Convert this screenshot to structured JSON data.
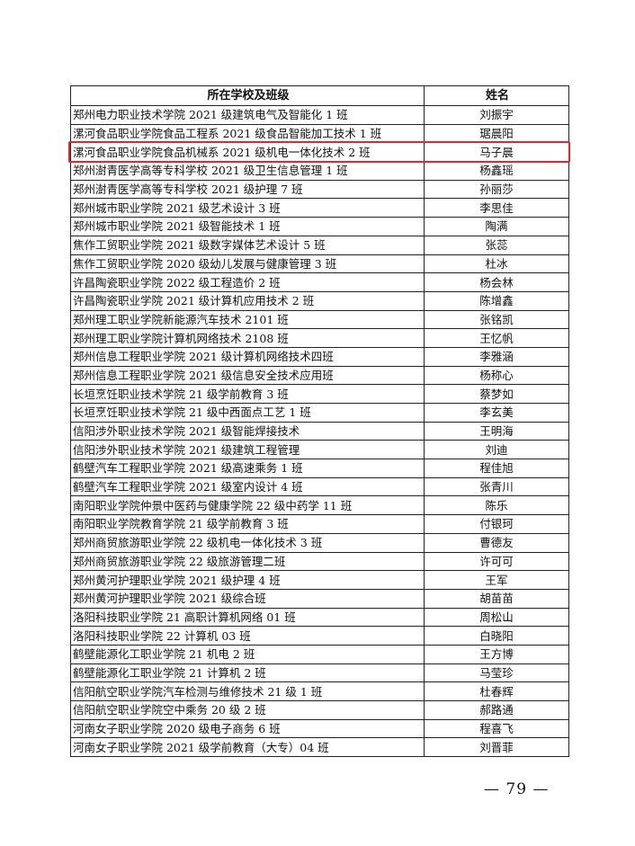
{
  "table": {
    "headers": [
      "所在学校及班级",
      "姓名"
    ],
    "rows": [
      [
        "郑州电力职业技术学院 2021 级建筑电气及智能化 1 班",
        "刘振宇"
      ],
      [
        "漯河食品职业学院食品工程系 2021 级食品智能加工技术 1 班",
        "琚晨阳"
      ],
      [
        "漯河食品职业学院食品机械系 2021 级机电一体化技术 2 班",
        "马子晨"
      ],
      [
        "郑州澍青医学高等专科学校 2021 级卫生信息管理 1 班",
        "杨鑫瑶"
      ],
      [
        "郑州澍青医学高等专科学校 2021 级护理 7 班",
        "孙丽莎"
      ],
      [
        "郑州城市职业学院 2021 级艺术设计 3 班",
        "李思佳"
      ],
      [
        "郑州城市职业学院 2021 级智能技术 1 班",
        "陶满"
      ],
      [
        "焦作工贸职业学院 2021 级数字媒体艺术设计 5 班",
        "张蕊"
      ],
      [
        "焦作工贸职业学院 2020 级幼儿发展与健康管理 3 班",
        "杜冰"
      ],
      [
        "许昌陶瓷职业学院 2022 级工程造价 2 班",
        "杨会林"
      ],
      [
        "许昌陶瓷职业学院 2021 级计算机应用技术 2 班",
        "陈增鑫"
      ],
      [
        "郑州理工职业学院新能源汽车技术 2101 班",
        "张铭凯"
      ],
      [
        "郑州理工职业学院计算机网络技术 2108 班",
        "王忆帆"
      ],
      [
        "郑州信息工程职业学院 2021 级计算机网络技术四班",
        "李雅涵"
      ],
      [
        "郑州信息工程职业学院 2021 级信息安全技术应用班",
        "杨称心"
      ],
      [
        "长垣烹饪职业技术学院 21 级学前教育 3 班",
        "蔡梦如"
      ],
      [
        "长垣烹饪职业技术学院 21 级中西面点工艺 1 班",
        "李玄美"
      ],
      [
        "信阳涉外职业技术学院 2021 级智能焊接技术",
        "王明海"
      ],
      [
        "信阳涉外职业技术学院 2021 级建筑工程管理",
        "刘迪"
      ],
      [
        "鹤壁汽车工程职业学院 2021 级高速乘务 1 班",
        "程佳旭"
      ],
      [
        "鹤壁汽车工程职业学院 2021 级室内设计 4 班",
        "张青川"
      ],
      [
        "南阳职业学院仲景中医药与健康学院 22 级中药学 11 班",
        "陈乐"
      ],
      [
        "南阳职业学院教育学院 21 级学前教育 3 班",
        "付银珂"
      ],
      [
        "郑州商贸旅游职业学院 22 级机电一体化技术 3 班",
        "曹德友"
      ],
      [
        "郑州商贸旅游职业学院 22 级旅游管理二班",
        "许可可"
      ],
      [
        "郑州黄河护理职业学院 2021 级护理 4 班",
        "王军"
      ],
      [
        "郑州黄河护理职业学院 2021 级综合班",
        "胡苗苗"
      ],
      [
        "洛阳科技职业学院 21 高职计算机网络 01 班",
        "周松山"
      ],
      [
        "洛阳科技职业学院 22 计算机 03 班",
        "白晓阳"
      ],
      [
        "鹤壁能源化工职业学院 21 机电 2 班",
        "王方博"
      ],
      [
        "鹤壁能源化工职业学院 21 计算机 2 班",
        "马莹珍"
      ],
      [
        "信阳航空职业学院汽车检测与维修技术 21 级 1 班",
        "杜春辉"
      ],
      [
        "信阳航空职业学院空中乘务 20 级 2 班",
        "郝路通"
      ],
      [
        "河南女子职业学院 2020 级电子商务 6 班",
        "程喜飞"
      ],
      [
        "河南女子职业学院 2021 级学前教育（大专）04 班",
        "刘晋菲"
      ]
    ],
    "highlighted_row": 3,
    "highlight_color": "#e8242c"
  },
  "footer": {
    "page_number": "— 79 —"
  }
}
